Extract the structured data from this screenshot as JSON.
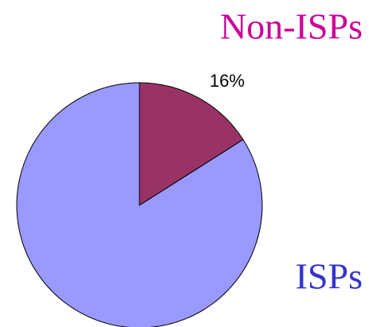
{
  "chart_data": {
    "type": "pie",
    "categories": [
      "Non-ISPs",
      "ISPs"
    ],
    "values": [
      16,
      84
    ],
    "value_labels": [
      "16%",
      null
    ],
    "colors": [
      "#993366",
      "#9999ff"
    ],
    "label_colors": [
      "#cc0099",
      "#3333cc"
    ]
  }
}
